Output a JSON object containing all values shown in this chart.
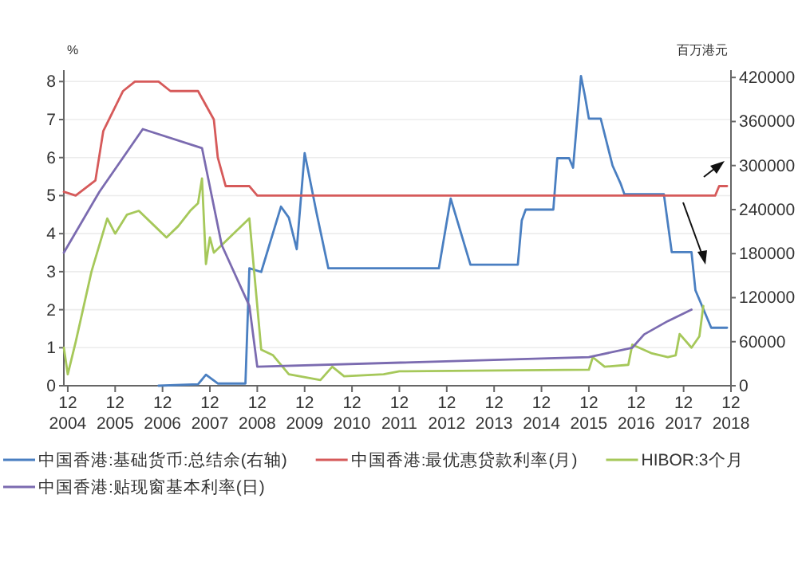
{
  "chart_data": {
    "type": "line",
    "ylabel": "%",
    "y2label": "百万港元",
    "xlim": [
      "2004-11",
      "2018-12"
    ],
    "xticks": [
      {
        "value": "2004-12",
        "label": "12\n2004"
      },
      {
        "value": "2005-12",
        "label": "12\n2005"
      },
      {
        "value": "2006-12",
        "label": "12\n2006"
      },
      {
        "value": "2007-12",
        "label": "12\n2007"
      },
      {
        "value": "2008-12",
        "label": "12\n2008"
      },
      {
        "value": "2009-12",
        "label": "12\n2009"
      },
      {
        "value": "2010-12",
        "label": "12\n2010"
      },
      {
        "value": "2011-12",
        "label": "12\n2011"
      },
      {
        "value": "2012-12",
        "label": "12\n2012"
      },
      {
        "value": "2013-12",
        "label": "12\n2013"
      },
      {
        "value": "2014-12",
        "label": "12\n2014"
      },
      {
        "value": "2015-12",
        "label": "12\n2015"
      },
      {
        "value": "2016-12",
        "label": "12\n2016"
      },
      {
        "value": "2017-12",
        "label": "12\n2017"
      },
      {
        "value": "2018-12",
        "label": "12\n2018"
      }
    ],
    "ylim": [
      0,
      8.3
    ],
    "yticks": [
      0,
      1,
      2,
      3,
      4,
      5,
      6,
      7,
      8
    ],
    "y2lim": [
      0,
      430000
    ],
    "y2ticks": [
      0,
      60000,
      120000,
      180000,
      240000,
      300000,
      360000,
      420000
    ],
    "grid": "y",
    "legend": "bottom",
    "series": [
      {
        "name": "中国香港:基础货币:总结余(右轴)",
        "color": "#4a7fc1",
        "axis": "y2",
        "x": [
          "2006-11",
          "2007-09",
          "2007-11",
          "2008-02",
          "2008-09",
          "2008-10",
          "2009-01",
          "2009-06",
          "2009-08",
          "2009-10",
          "2009-12",
          "2010-03",
          "2010-06",
          "2012-10",
          "2013-01",
          "2013-06",
          "2014-06",
          "2014-07",
          "2014-08",
          "2015-03",
          "2015-04",
          "2015-07",
          "2015-08",
          "2015-10",
          "2015-11",
          "2015-12",
          "2016-03",
          "2016-06",
          "2016-08",
          "2016-09",
          "2017-07",
          "2017-09",
          "2018-02",
          "2018-03",
          "2018-07",
          "2018-11"
        ],
        "values": [
          0,
          2000,
          15000,
          3000,
          3000,
          160000,
          155000,
          244000,
          229000,
          186000,
          317000,
          236000,
          160000,
          160000,
          255000,
          165000,
          165000,
          225000,
          240000,
          240000,
          310000,
          310000,
          297000,
          422000,
          395000,
          364000,
          364000,
          300000,
          276000,
          261000,
          261000,
          182000,
          182000,
          130000,
          79000,
          79000
        ]
      },
      {
        "name": "中国香港:最优惠贷款利率(月)",
        "color": "#d65a5a",
        "x": [
          "2004-11",
          "2005-02",
          "2005-07",
          "2005-09",
          "2006-02",
          "2006-05",
          "2006-11",
          "2007-02",
          "2007-09",
          "2008-01",
          "2008-02",
          "2008-04",
          "2008-10",
          "2008-12",
          "2018-08",
          "2018-09",
          "2018-11"
        ],
        "values": [
          5.1,
          5.0,
          5.4,
          6.7,
          7.75,
          8.0,
          8.0,
          7.75,
          7.75,
          7.0,
          6.0,
          5.25,
          5.25,
          5.0,
          5.0,
          5.25,
          5.25
        ]
      },
      {
        "name": "HIBOR:3个月",
        "color": "#a6c85a",
        "x": [
          "2004-11",
          "2004-12",
          "2005-02",
          "2005-06",
          "2005-10",
          "2005-12",
          "2006-03",
          "2006-06",
          "2006-10",
          "2007-01",
          "2007-04",
          "2007-07",
          "2007-09",
          "2007-10",
          "2007-11",
          "2007-12",
          "2008-01",
          "2008-10",
          "2009-01",
          "2009-04",
          "2009-08",
          "2010-04",
          "2010-07",
          "2010-10",
          "2011-08",
          "2011-12",
          "2015-12",
          "2016-01",
          "2016-04",
          "2016-10",
          "2016-11",
          "2017-04",
          "2017-08",
          "2017-10",
          "2017-11",
          "2018-02",
          "2018-04",
          "2018-05"
        ],
        "values": [
          1.0,
          0.3,
          1.15,
          3.0,
          4.4,
          4.0,
          4.5,
          4.6,
          4.2,
          3.9,
          4.2,
          4.6,
          4.8,
          5.45,
          3.2,
          3.9,
          3.5,
          4.4,
          0.95,
          0.8,
          0.3,
          0.15,
          0.5,
          0.25,
          0.3,
          0.38,
          0.42,
          0.75,
          0.5,
          0.55,
          1.08,
          0.85,
          0.75,
          0.8,
          1.36,
          1.0,
          1.3,
          2.1
        ]
      },
      {
        "name": "中国香港:贴现窗基本利率(日)",
        "color": "#7b6bb0",
        "x": [
          "2004-11",
          "2005-08",
          "2006-07",
          "2007-10",
          "2008-03",
          "2008-10",
          "2008-12",
          "2015-12",
          "2016-11",
          "2017-02",
          "2017-08",
          "2018-02"
        ],
        "values": [
          3.5,
          5.1,
          6.75,
          6.25,
          3.7,
          2.1,
          0.5,
          0.75,
          1.0,
          1.35,
          1.7,
          2.0
        ]
      }
    ]
  }
}
